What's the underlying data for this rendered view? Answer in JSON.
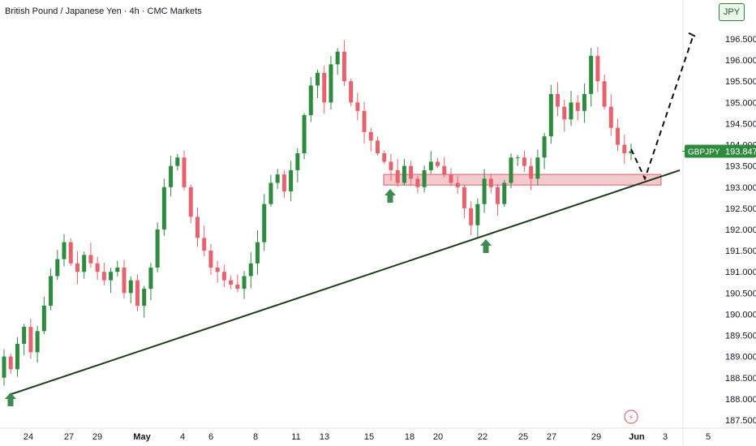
{
  "header": {
    "title": "British Pound / Japanese Yen · 4h · CMC Markets",
    "currency": "JPY"
  },
  "price_label": {
    "symbol": "GBPJPY",
    "value": "193.847"
  },
  "colors": {
    "up": "#2e8b3e",
    "down": "#e8626e",
    "zone": "#f2b8be",
    "trendline": "#1b3d1b",
    "arrow": "#3f8a4f",
    "label_bg": "#2e8b3e"
  },
  "chart_data": {
    "type": "candlestick",
    "title": "British Pound / Japanese Yen · 4h · CMC Markets",
    "xlabel": "",
    "ylabel": "",
    "ylim": [
      187.35,
      197.05
    ],
    "y_ticks": [
      "187.500",
      "188.000",
      "188.500",
      "189.000",
      "189.500",
      "190.000",
      "190.500",
      "191.000",
      "191.500",
      "192.000",
      "192.500",
      "193.000",
      "193.500",
      "194.000",
      "194.500",
      "195.000",
      "195.500",
      "196.000",
      "196.500"
    ],
    "x_ticks": [
      "24",
      "27",
      "29",
      "May",
      "4",
      "6",
      "8",
      "11",
      "13",
      "15",
      "18",
      "20",
      "22",
      "25",
      "27",
      "29",
      "Jun",
      "3",
      "5"
    ],
    "close_path": [
      189.0,
      188.7,
      189.3,
      189.7,
      189.1,
      189.6,
      190.2,
      190.9,
      191.3,
      191.7,
      191.2,
      191.0,
      191.4,
      191.2,
      191.0,
      190.8,
      191.0,
      191.1,
      190.5,
      190.8,
      190.2,
      190.6,
      191.1,
      192.0,
      193.0,
      193.5,
      193.7,
      193.0,
      192.3,
      191.8,
      191.5,
      191.1,
      191.0,
      190.8,
      190.7,
      190.6,
      190.9,
      191.2,
      191.7,
      192.6,
      193.1,
      193.3,
      192.9,
      193.4,
      193.8,
      194.7,
      195.4,
      195.7,
      195.0,
      195.9,
      196.2,
      195.5,
      195.0,
      194.8,
      194.3,
      194.1,
      193.8,
      193.6,
      193.4,
      193.1,
      193.5,
      193.2,
      193.0,
      193.4,
      193.6,
      193.5,
      193.3,
      193.1,
      193.0,
      192.5,
      192.1,
      192.6,
      193.2,
      193.0,
      192.6,
      193.1,
      193.7,
      193.7,
      193.5,
      193.2,
      193.7,
      194.2,
      195.2,
      194.9,
      194.6,
      195.0,
      194.8,
      195.2,
      196.1,
      195.5,
      194.9,
      194.4,
      194.0,
      193.8,
      193.85
    ],
    "open_first": 188.5,
    "trendline": [
      [
        "Apr 23",
        188.1
      ],
      [
        "Jun 4",
        193.4
      ]
    ],
    "zone": {
      "from": 193.05,
      "to": 193.3
    },
    "projection": [
      193.9,
      193.2,
      196.6
    ],
    "marker": "⚡"
  }
}
